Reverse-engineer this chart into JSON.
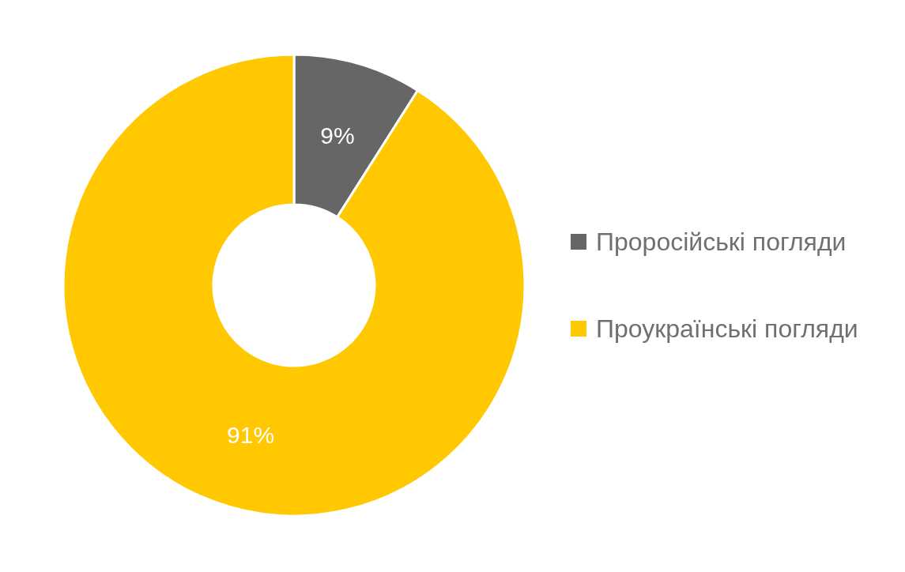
{
  "chart_data": {
    "type": "donut",
    "categories": [
      "Проросійські погляди",
      "Проукраїнські погляди"
    ],
    "values": [
      9,
      91
    ],
    "colors": [
      "#666666",
      "#ffc800"
    ],
    "value_labels": [
      "9%",
      "91%"
    ],
    "legend": "right"
  }
}
